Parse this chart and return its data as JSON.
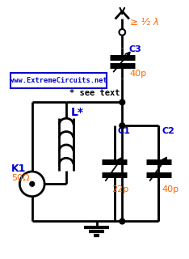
{
  "bg_color": "#ffffff",
  "line_color": "#000000",
  "label_blue": "#0000cc",
  "label_orange": "#ff6600",
  "website_text": "www.ExtremeCircuits.net",
  "see_text": "* see text",
  "antenna_label": "≥ ¹⁄₂ λ",
  "C3_label": "C3",
  "C3_val": "40p",
  "C1_label": "C1",
  "C1_val": "22p",
  "C2_label": "C2",
  "C2_val": "40p",
  "L_label": "L*",
  "K1_label": "K1",
  "K1_val": "50Ω"
}
